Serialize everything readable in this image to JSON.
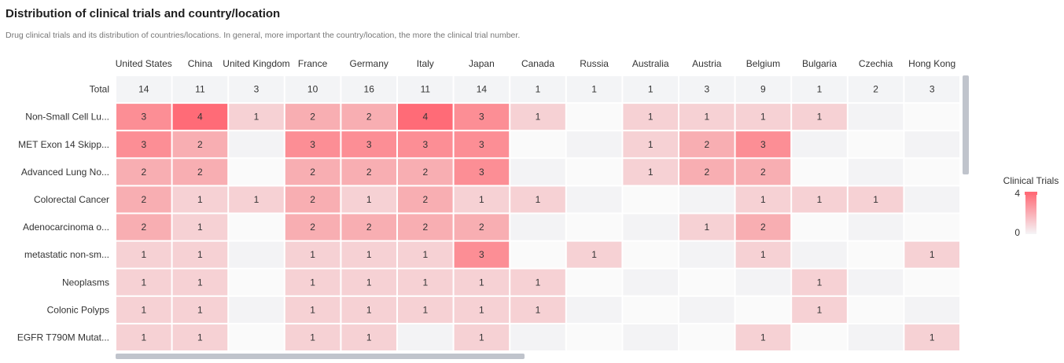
{
  "header": {
    "title": "Distribution of clinical trials and country/location",
    "subtitle": "Drug clinical trials and its distribution of countries/locations. In general, more important the country/location, the more the clinical trial number."
  },
  "chart_data": {
    "type": "heatmap",
    "columns": [
      "United States",
      "China",
      "United Kingdom",
      "France",
      "Germany",
      "Italy",
      "Japan",
      "Canada",
      "Russia",
      "Australia",
      "Austria",
      "Belgium",
      "Bulgaria",
      "Czechia",
      "Hong Kong"
    ],
    "total_label": "Total",
    "totals": [
      14,
      11,
      3,
      10,
      16,
      11,
      14,
      1,
      1,
      1,
      3,
      9,
      1,
      2,
      3
    ],
    "rows": [
      {
        "label": "Non-Small Cell Lu...",
        "values": [
          3,
          4,
          1,
          2,
          2,
          4,
          3,
          1,
          null,
          1,
          1,
          1,
          1,
          null,
          null
        ]
      },
      {
        "label": "MET Exon 14 Skipp...",
        "values": [
          3,
          2,
          null,
          3,
          3,
          3,
          3,
          null,
          null,
          1,
          2,
          3,
          null,
          null,
          null
        ]
      },
      {
        "label": "Advanced Lung No...",
        "values": [
          2,
          2,
          null,
          2,
          2,
          2,
          3,
          null,
          null,
          1,
          2,
          2,
          null,
          null,
          null
        ]
      },
      {
        "label": "Colorectal Cancer",
        "values": [
          2,
          1,
          1,
          2,
          1,
          2,
          1,
          1,
          null,
          null,
          null,
          1,
          1,
          1,
          null
        ]
      },
      {
        "label": "Adenocarcinoma o...",
        "values": [
          2,
          1,
          null,
          2,
          2,
          2,
          2,
          null,
          null,
          null,
          1,
          2,
          null,
          null,
          null
        ]
      },
      {
        "label": "metastatic non-sm...",
        "values": [
          1,
          1,
          null,
          1,
          1,
          1,
          3,
          null,
          1,
          null,
          null,
          1,
          null,
          null,
          1
        ]
      },
      {
        "label": "Neoplasms",
        "values": [
          1,
          1,
          null,
          1,
          1,
          1,
          1,
          1,
          null,
          null,
          null,
          null,
          1,
          null,
          null
        ]
      },
      {
        "label": "Colonic Polyps",
        "values": [
          1,
          1,
          null,
          1,
          1,
          1,
          1,
          1,
          null,
          null,
          null,
          null,
          1,
          null,
          null
        ]
      },
      {
        "label": "EGFR T790M Mutat...",
        "values": [
          1,
          1,
          null,
          1,
          1,
          null,
          1,
          null,
          null,
          null,
          null,
          1,
          null,
          null,
          1
        ]
      }
    ],
    "legend": {
      "title": "Clinical Trials",
      "max": 4,
      "min": 0,
      "max_color": "#ff6b77",
      "min_color": "#f5f5f7"
    },
    "colors": {
      "level_4": "#ff6b77",
      "level_3": "#fc8e95",
      "level_2": "#f8aeb2",
      "level_1": "#f6d1d4",
      "empty_light": "#fafafa",
      "empty_dark": "#f3f3f5",
      "total_bg": "#f3f4f6",
      "scrollbar": "#c0c4cc"
    }
  }
}
